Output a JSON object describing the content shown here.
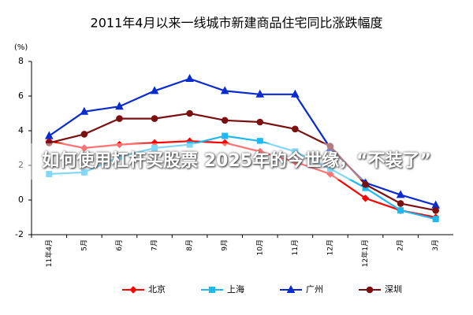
{
  "chart_data": {
    "type": "line",
    "title": "2011年4月以来一线城市新建商品住宅同比涨跌幅度",
    "y_unit": "(%)",
    "categories": [
      "11年4月",
      "5月",
      "6月",
      "7月",
      "8月",
      "9月",
      "10月",
      "11月",
      "12月",
      "12年1月",
      "2月",
      "3月"
    ],
    "series": [
      {
        "name": "北京",
        "color": "#ff0000",
        "marker": "diamond",
        "values": [
          3.4,
          3.0,
          3.2,
          3.3,
          3.4,
          3.3,
          2.8,
          2.2,
          1.5,
          0.1,
          -0.6,
          -1.0
        ]
      },
      {
        "name": "上海",
        "color": "#1fb8f0",
        "marker": "square",
        "values": [
          1.5,
          1.6,
          2.5,
          3.0,
          3.2,
          3.7,
          3.4,
          2.8,
          1.8,
          0.7,
          -0.6,
          -1.1
        ]
      },
      {
        "name": "广州",
        "color": "#0a2ccf",
        "marker": "triangle",
        "values": [
          3.7,
          5.1,
          5.4,
          6.3,
          7.0,
          6.3,
          6.1,
          6.1,
          3.0,
          1.0,
          0.3,
          -0.3
        ]
      },
      {
        "name": "深圳",
        "color": "#7a1010",
        "marker": "circle",
        "values": [
          3.3,
          3.8,
          4.7,
          4.7,
          5.0,
          4.6,
          4.5,
          4.1,
          3.1,
          0.9,
          -0.2,
          -0.6
        ]
      }
    ],
    "ylim": [
      -2,
      8
    ],
    "yticks": [
      -2,
      0,
      2,
      4,
      6,
      8
    ],
    "grid": false,
    "legend": "bottom"
  },
  "overlay": {
    "text": "如何使用杠杆买股票 2025年的今世缘，“不装了”"
  }
}
